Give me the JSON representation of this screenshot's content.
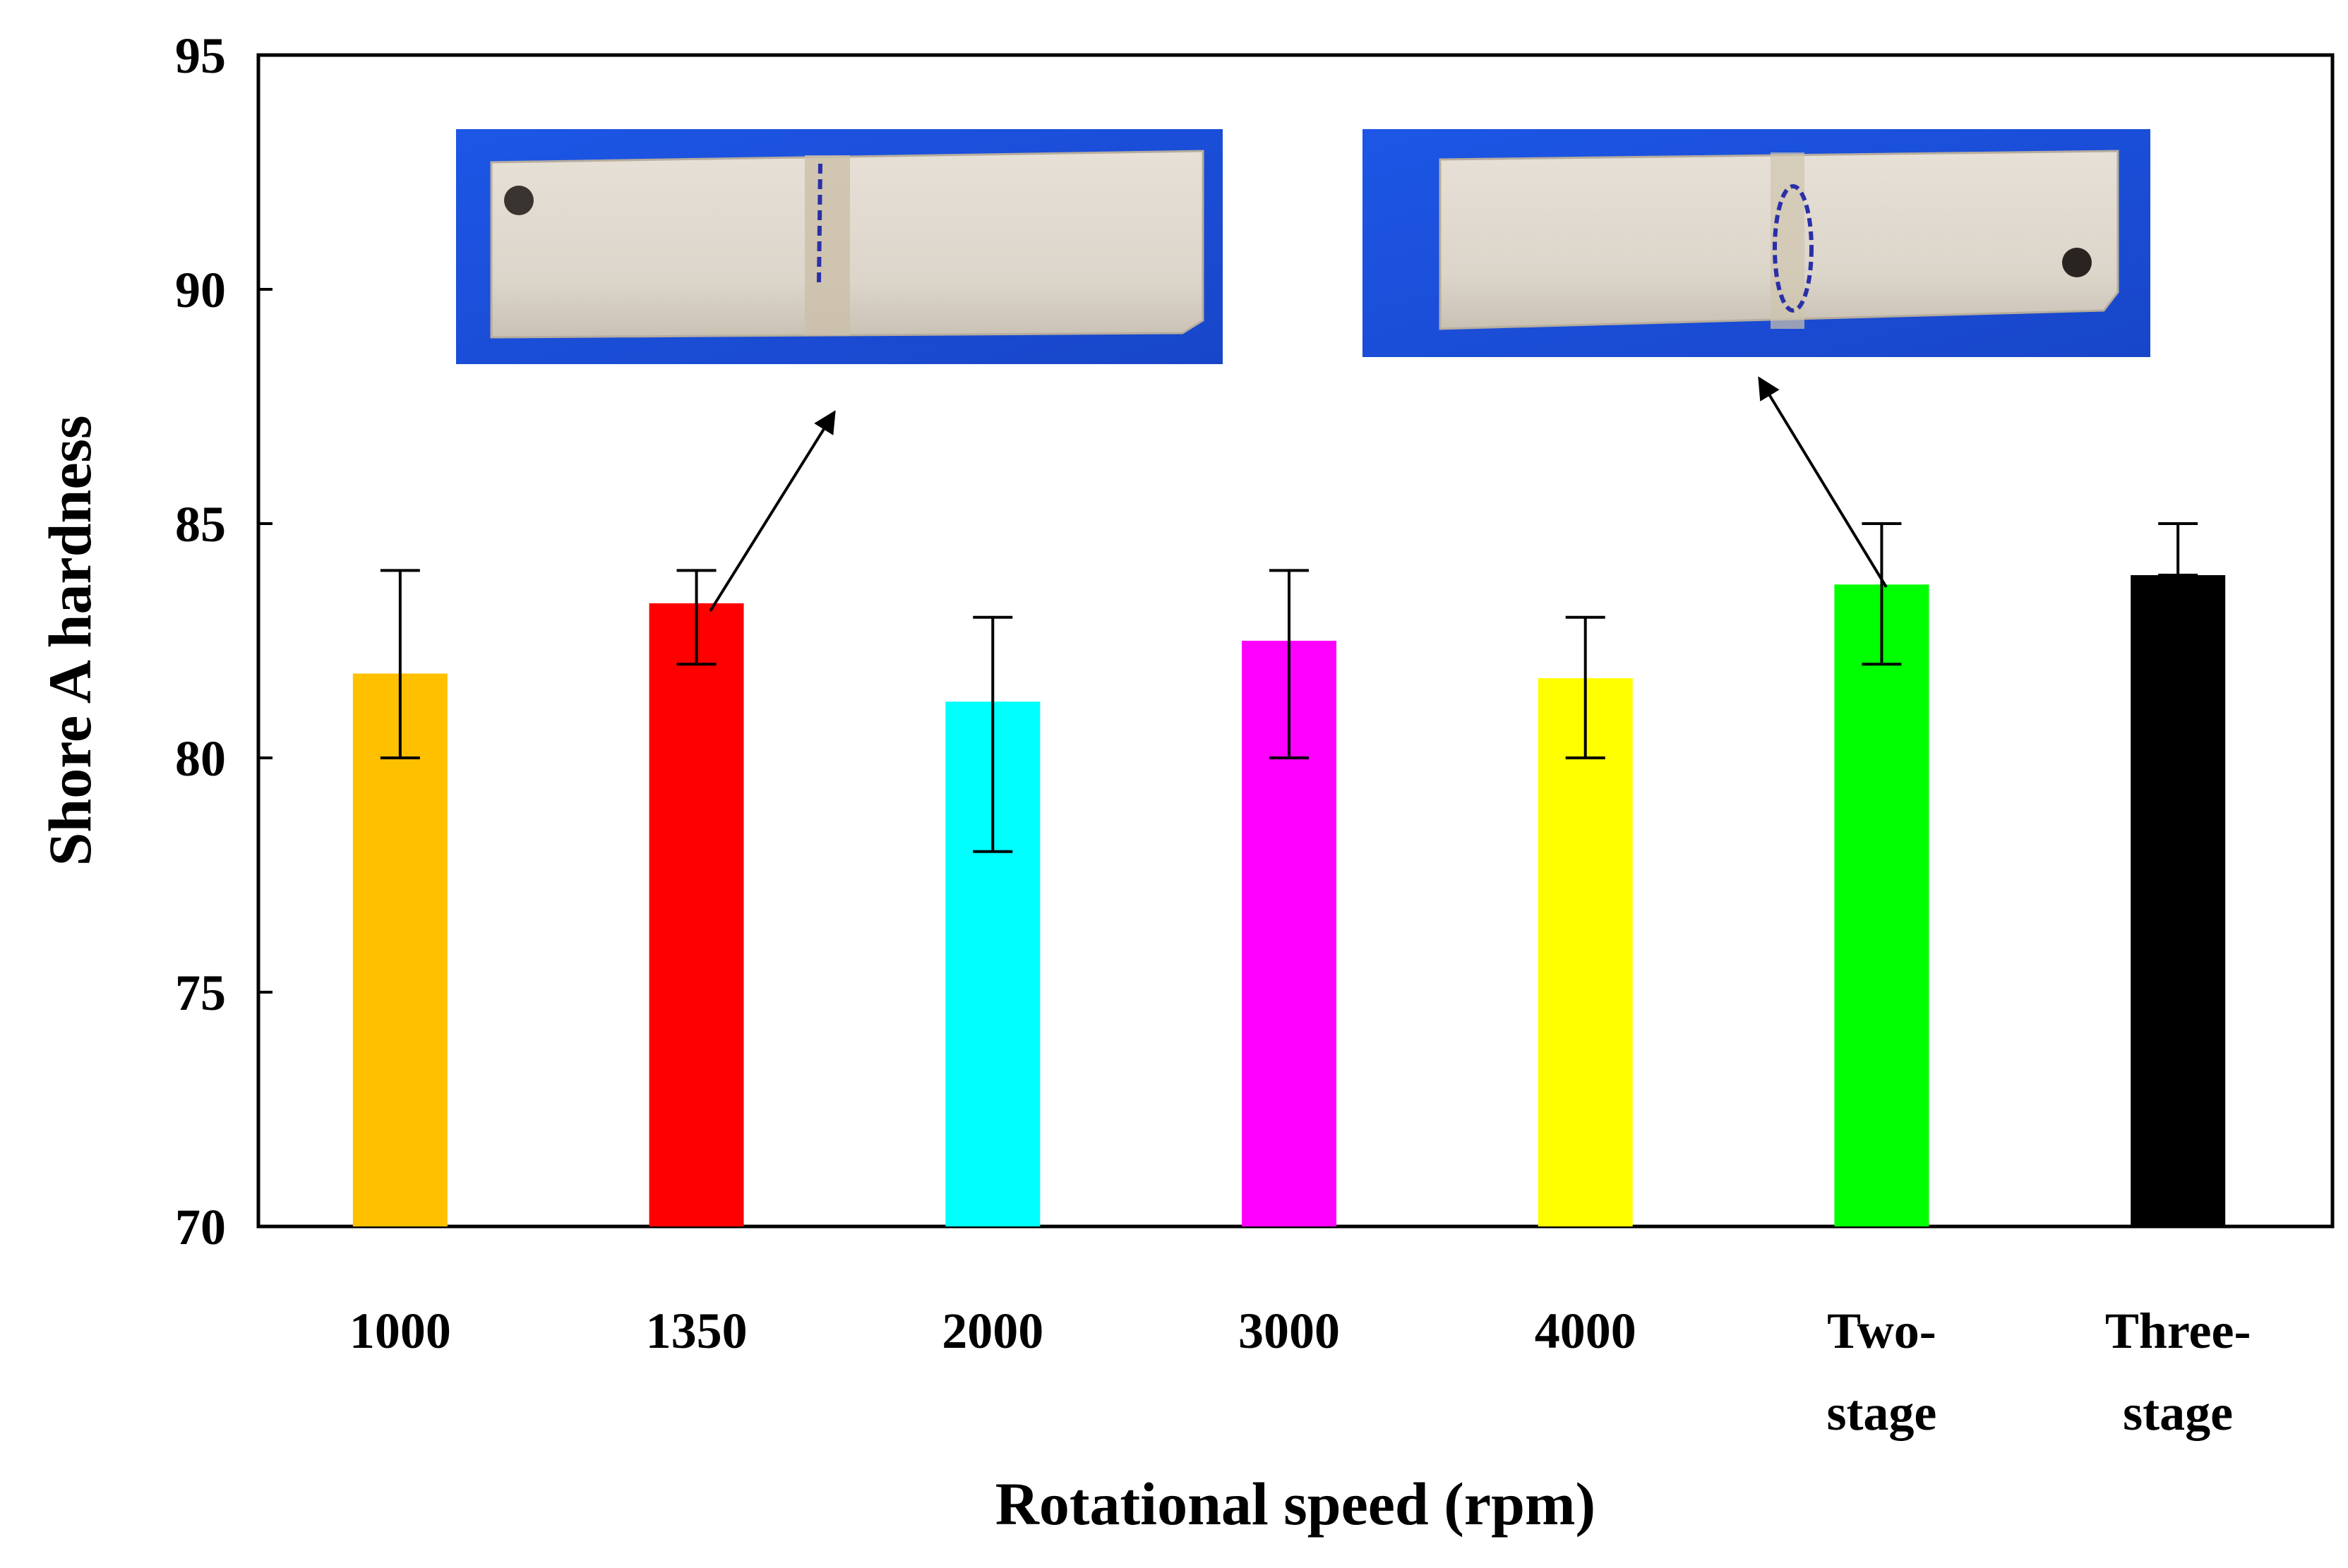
{
  "chart_data": {
    "type": "bar",
    "title": "",
    "xlabel": "Rotational speed (rpm)",
    "ylabel": "Shore A hardness",
    "ylim": [
      70,
      95
    ],
    "yticks": [
      "70",
      "75",
      "80",
      "85",
      "90",
      "95"
    ],
    "grid": false,
    "categories": [
      [
        "1000"
      ],
      [
        "1350"
      ],
      [
        "2000"
      ],
      [
        "3000"
      ],
      [
        "4000"
      ],
      [
        "Two-",
        "stage"
      ],
      [
        "Three-",
        "stage"
      ]
    ],
    "values": [
      81.8,
      83.3,
      81.2,
      82.5,
      81.7,
      83.7,
      83.9
    ],
    "error_low": [
      80,
      82,
      78,
      80,
      80,
      82,
      83.9
    ],
    "error_high": [
      84,
      84,
      83,
      84,
      83,
      85,
      85
    ],
    "colors": [
      "#FFC000",
      "#FF0000",
      "#00FFFF",
      "#FF00FF",
      "#FFFF00",
      "#00FF00",
      "#000000"
    ],
    "insets": [
      {
        "description": "photo of specimen processed at 1350 rpm",
        "points_to": "1350"
      },
      {
        "description": "photo of specimen processed with two-stage speed",
        "points_to": "Two-stage"
      }
    ]
  }
}
